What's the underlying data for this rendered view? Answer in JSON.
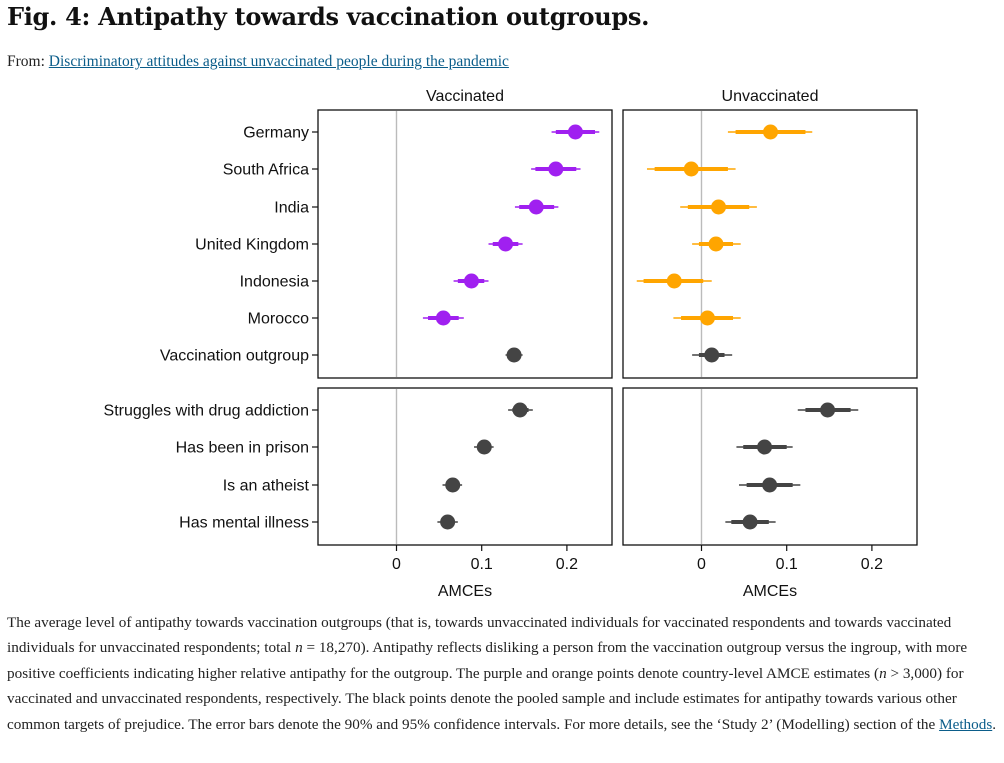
{
  "figure": {
    "title": "Fig. 4: Antipathy towards vaccination outgroups.",
    "from_label": "From:",
    "from_link": "Discriminatory attitudes against unvaccinated people during the pandemic"
  },
  "chart_data": {
    "type": "dot-errorbar",
    "panels": [
      "Vaccinated",
      "Unvaccinated"
    ],
    "xlabel": "AMCEs",
    "xlim": [
      -0.093,
      0.253
    ],
    "xticks": [
      0,
      0.1,
      0.2
    ],
    "xtick_labels": [
      "0",
      "0.1",
      "0.2"
    ],
    "colors": {
      "vaccinated": "#a020f0",
      "unvaccinated": "#ffa500",
      "pooled": "#444444",
      "zero_line": "#bbbbbb"
    },
    "groups": [
      {
        "rows": [
          {
            "label": "Germany",
            "color": "vaccinated",
            "vaccinated": {
              "est": 0.21,
              "ci90": [
                0.187,
                0.233
              ],
              "ci95": [
                0.182,
                0.238
              ]
            },
            "unvaccinated": {
              "est": 0.081,
              "ci90": [
                0.04,
                0.122
              ],
              "ci95": [
                0.031,
                0.13
              ]
            }
          },
          {
            "label": "South Africa",
            "color": "vaccinated",
            "vaccinated": {
              "est": 0.187,
              "ci90": [
                0.163,
                0.211
              ],
              "ci95": [
                0.158,
                0.216
              ]
            },
            "unvaccinated": {
              "est": -0.012,
              "ci90": [
                -0.055,
                0.031
              ],
              "ci95": [
                -0.064,
                0.04
              ]
            }
          },
          {
            "label": "India",
            "color": "vaccinated",
            "vaccinated": {
              "est": 0.164,
              "ci90": [
                0.144,
                0.185
              ],
              "ci95": [
                0.139,
                0.19
              ]
            },
            "unvaccinated": {
              "est": 0.02,
              "ci90": [
                -0.016,
                0.056
              ],
              "ci95": [
                -0.025,
                0.065
              ]
            }
          },
          {
            "label": "United Kingdom",
            "color": "vaccinated",
            "vaccinated": {
              "est": 0.128,
              "ci90": [
                0.113,
                0.143
              ],
              "ci95": [
                0.108,
                0.148
              ]
            },
            "unvaccinated": {
              "est": 0.017,
              "ci90": [
                -0.003,
                0.037
              ],
              "ci95": [
                -0.011,
                0.046
              ]
            }
          },
          {
            "label": "Indonesia",
            "color": "vaccinated",
            "vaccinated": {
              "est": 0.088,
              "ci90": [
                0.072,
                0.103
              ],
              "ci95": [
                0.067,
                0.108
              ]
            },
            "unvaccinated": {
              "est": -0.032,
              "ci90": [
                -0.068,
                0.002
              ],
              "ci95": [
                -0.076,
                0.012
              ]
            }
          },
          {
            "label": "Morocco",
            "color": "vaccinated",
            "vaccinated": {
              "est": 0.055,
              "ci90": [
                0.037,
                0.073
              ],
              "ci95": [
                0.031,
                0.079
              ]
            },
            "unvaccinated": {
              "est": 0.007,
              "ci90": [
                -0.024,
                0.037
              ],
              "ci95": [
                -0.033,
                0.046
              ]
            }
          },
          {
            "label": "Vaccination outgroup",
            "color": "pooled",
            "vaccinated": {
              "est": 0.138,
              "ci90": [
                0.131,
                0.145
              ],
              "ci95": [
                0.128,
                0.148
              ]
            },
            "unvaccinated": {
              "est": 0.012,
              "ci90": [
                -0.003,
                0.027
              ],
              "ci95": [
                -0.011,
                0.036
              ]
            }
          }
        ]
      },
      {
        "rows": [
          {
            "label": "Struggles with drug addiction",
            "color": "pooled",
            "vaccinated": {
              "est": 0.145,
              "ci90": [
                0.136,
                0.155
              ],
              "ci95": [
                0.131,
                0.16
              ]
            },
            "unvaccinated": {
              "est": 0.148,
              "ci90": [
                0.122,
                0.175
              ],
              "ci95": [
                0.113,
                0.184
              ]
            }
          },
          {
            "label": "Has been in prison",
            "color": "pooled",
            "vaccinated": {
              "est": 0.103,
              "ci90": [
                0.095,
                0.11
              ],
              "ci95": [
                0.091,
                0.114
              ]
            },
            "unvaccinated": {
              "est": 0.074,
              "ci90": [
                0.049,
                0.1
              ],
              "ci95": [
                0.041,
                0.107
              ]
            }
          },
          {
            "label": "Is an atheist",
            "color": "pooled",
            "vaccinated": {
              "est": 0.066,
              "ci90": [
                0.058,
                0.073
              ],
              "ci95": [
                0.054,
                0.077
              ]
            },
            "unvaccinated": {
              "est": 0.08,
              "ci90": [
                0.053,
                0.107
              ],
              "ci95": [
                0.044,
                0.116
              ]
            }
          },
          {
            "label": "Has mental illness",
            "color": "pooled",
            "vaccinated": {
              "est": 0.06,
              "ci90": [
                0.052,
                0.068
              ],
              "ci95": [
                0.048,
                0.072
              ]
            },
            "unvaccinated": {
              "est": 0.057,
              "ci90": [
                0.035,
                0.079
              ],
              "ci95": [
                0.028,
                0.087
              ]
            }
          }
        ]
      }
    ]
  },
  "caption": {
    "p1": "The average level of antipathy towards vaccination outgroups (that is, towards unvaccinated individuals for vaccinated respondents and towards vaccinated individuals for unvaccinated respondents; total ",
    "n_total": "n",
    "p2": " = 18,270). Antipathy reflects disliking a person from the vaccination outgroup versus the ingroup, with more positive coefficients indicating higher relative antipathy for the outgroup. The purple and orange points denote country-level AMCE estimates (",
    "n_country": "n",
    "p3": " > 3,000) for vaccinated and unvaccinated respondents, respectively. The black points denote the pooled sample and include estimates for antipathy towards various other common targets of prejudice. The error bars denote the 90% and 95% confidence intervals. For more details, see the ‘Study 2’ (Modelling) section of the ",
    "methods_link": "Methods",
    "p4": "."
  }
}
